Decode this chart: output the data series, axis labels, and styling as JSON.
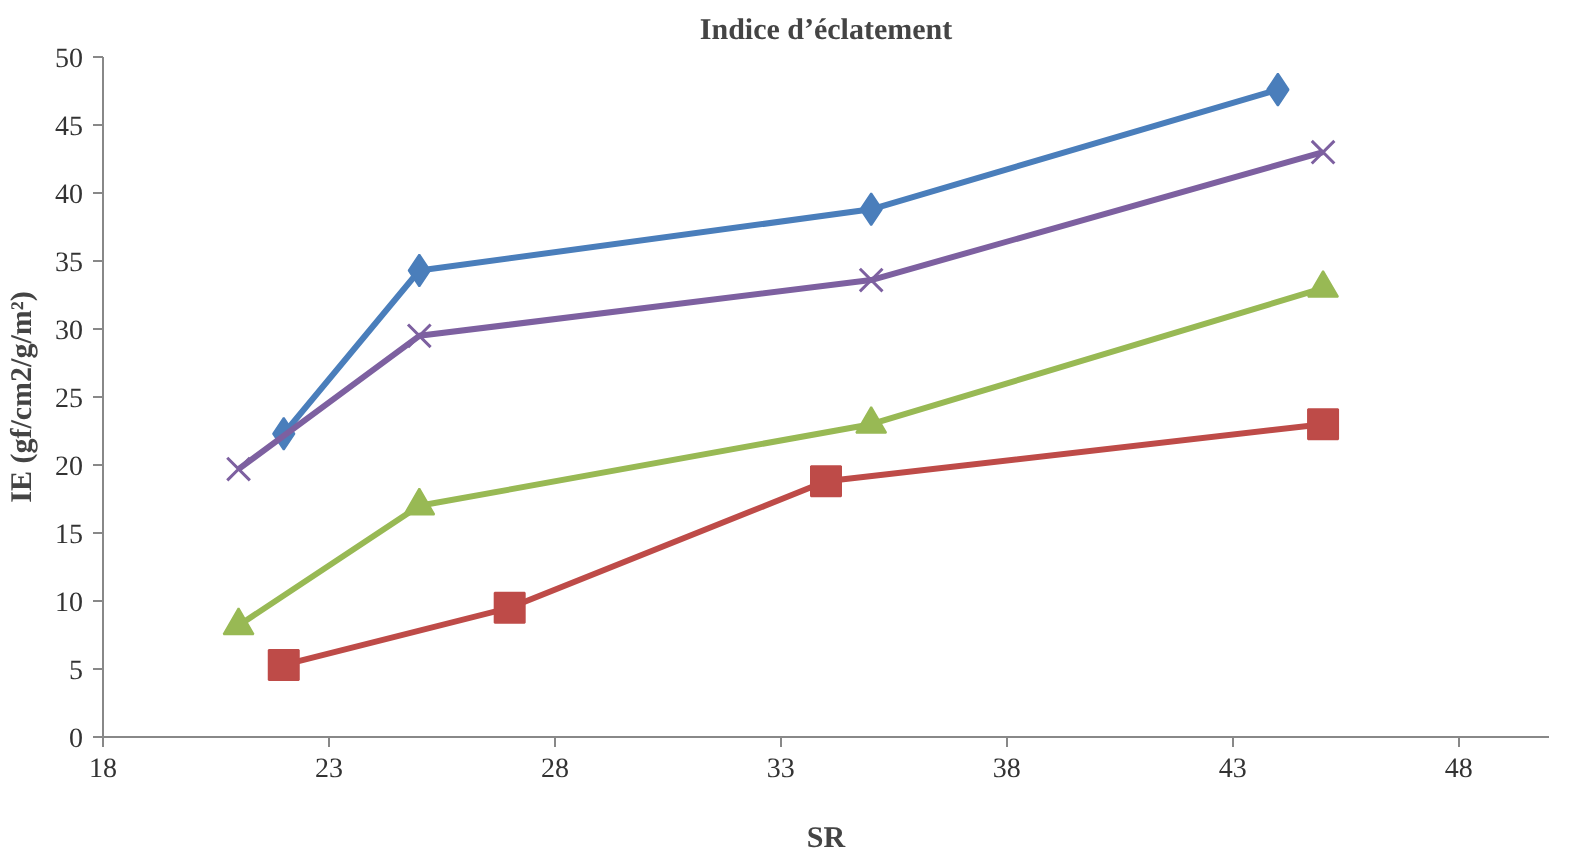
{
  "chart_data": {
    "type": "line",
    "title": "Indice d’éclatement",
    "xlabel": "SR",
    "ylabel": "IE (gf/cm2/g/m²)",
    "xlim": [
      18,
      50
    ],
    "xticks": [
      18,
      23,
      28,
      33,
      38,
      43,
      48
    ],
    "ylim": [
      0,
      50
    ],
    "yticks": [
      0,
      5,
      10,
      15,
      20,
      25,
      30,
      35,
      40,
      45,
      50
    ],
    "grid": false,
    "line_style": "solid",
    "series": [
      {
        "color": "#4a7ebb",
        "marker": "diamond",
        "x": [
          22,
          25,
          35,
          44
        ],
        "values": [
          22.3,
          34.3,
          38.8,
          47.6
        ]
      },
      {
        "color": "#be4b48",
        "marker": "square",
        "x": [
          22,
          27,
          34,
          45
        ],
        "values": [
          5.3,
          9.5,
          18.8,
          23
        ]
      },
      {
        "color": "#98b954",
        "marker": "triangle",
        "x": [
          21,
          25,
          35,
          45
        ],
        "values": [
          8.2,
          17,
          23,
          33
        ]
      },
      {
        "color": "#7d60a0",
        "marker": "cross",
        "x": [
          21,
          25,
          35,
          45
        ],
        "values": [
          19.7,
          29.5,
          33.6,
          43
        ]
      }
    ]
  }
}
